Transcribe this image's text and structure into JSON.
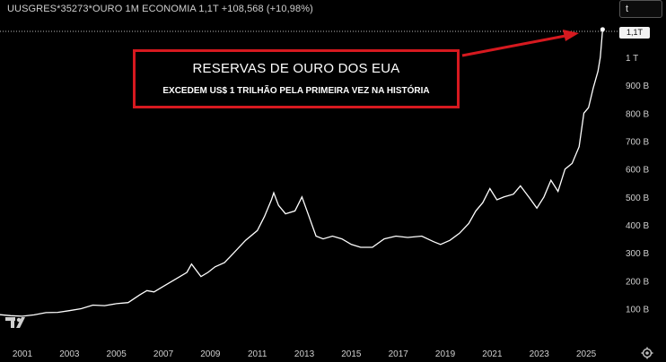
{
  "header": {
    "title": "UUSGRES*35273*OURO 1M ECONOMIA 1,1T +108,568 (+10,98%)"
  },
  "symbol_input": {
    "value": "t"
  },
  "price_badge": "1,1T",
  "callout": {
    "title": "RESERVAS DE OURO DOS EUA",
    "subtitle": "EXCEDEM US$ 1 TRILHÃO PELA PRIMEIRA VEZ NA HISTÓRIA"
  },
  "icons": {
    "logo": "tradingview-logo",
    "settings": "gear-icon",
    "arrow": "red-arrow"
  },
  "colors": {
    "background": "#000000",
    "line": "#ffffff",
    "callout_border": "#d6191f",
    "arrow": "#d6191f"
  },
  "chart_data": {
    "type": "line",
    "title": "",
    "xlabel": "",
    "ylabel": "",
    "ylim": [
      0,
      1100
    ],
    "y_unit": "B",
    "y_ticks": [
      {
        "v": 100,
        "label": "100 B"
      },
      {
        "v": 200,
        "label": "200 B"
      },
      {
        "v": 300,
        "label": "300 B"
      },
      {
        "v": 400,
        "label": "400 B"
      },
      {
        "v": 500,
        "label": "500 B"
      },
      {
        "v": 600,
        "label": "600 B"
      },
      {
        "v": 700,
        "label": "700 B"
      },
      {
        "v": 800,
        "label": "800 B"
      },
      {
        "v": 900,
        "label": "900 B"
      },
      {
        "v": 1000,
        "label": "1 T"
      }
    ],
    "x_ticks": [
      "2001",
      "2003",
      "2005",
      "2007",
      "2009",
      "2011",
      "2013",
      "2015",
      "2017",
      "2019",
      "2021",
      "2023",
      "2025"
    ],
    "series": [
      {
        "x": [
          2000.0,
          2000.5,
          2001.0,
          2001.5,
          2002.0,
          2002.5,
          2003.0,
          2003.5,
          2004.0,
          2004.5,
          2005.0,
          2005.5,
          2006.0,
          2006.3,
          2006.6,
          2007.0,
          2007.5,
          2008.0,
          2008.2,
          2008.6,
          2008.9,
          2009.2,
          2009.6,
          2010.0,
          2010.5,
          2011.0,
          2011.3,
          2011.6,
          2011.7,
          2011.9,
          2012.2,
          2012.6,
          2012.9,
          2013.2,
          2013.5,
          2013.8,
          2014.2,
          2014.6,
          2015.0,
          2015.4,
          2015.9,
          2016.4,
          2016.9,
          2017.4,
          2018.0,
          2018.5,
          2018.8,
          2019.2,
          2019.6,
          2020.0,
          2020.3,
          2020.6,
          2020.9,
          2021.2,
          2021.5,
          2021.9,
          2022.2,
          2022.6,
          2022.9,
          2023.2,
          2023.5,
          2023.8,
          2024.1,
          2024.4,
          2024.7,
          2024.9,
          2025.1,
          2025.3,
          2025.5,
          2025.6,
          2025.7
        ],
        "values": [
          79,
          75,
          73,
          78,
          86,
          87,
          93,
          100,
          113,
          111,
          118,
          122,
          150,
          165,
          160,
          180,
          205,
          230,
          260,
          215,
          230,
          250,
          265,
          300,
          345,
          380,
          430,
          490,
          515,
          470,
          440,
          450,
          500,
          430,
          360,
          350,
          360,
          350,
          330,
          320,
          320,
          350,
          360,
          355,
          360,
          340,
          330,
          345,
          370,
          405,
          450,
          480,
          530,
          490,
          500,
          510,
          540,
          495,
          460,
          500,
          560,
          520,
          600,
          620,
          680,
          800,
          820,
          890,
          950,
          1000,
          1100
        ]
      }
    ]
  }
}
